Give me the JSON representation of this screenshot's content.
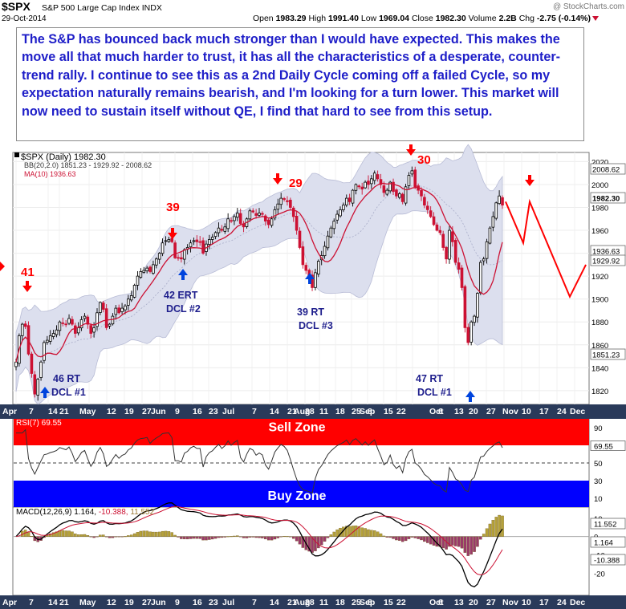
{
  "header": {
    "symbol": "$SPX",
    "name": "S&P 500 Large Cap Index",
    "exchange": "INDX",
    "date": "29-Oct-2014",
    "open_label": "Open",
    "open": "1983.29",
    "high_label": "High",
    "high": "1991.40",
    "low_label": "Low",
    "low": "1969.04",
    "close_label": "Close",
    "close": "1982.30",
    "volume_label": "Volume",
    "volume": "2.2B",
    "chg_label": "Chg",
    "chg": "-2.75 (-0.14%)",
    "watermark": "@ StockCharts.com"
  },
  "annotation_text": "The S&P has bounced back much stronger than I would have expected.  This makes the move all that much harder to trust, it has all the characteristics of a desperate, counter-trend rally.  I continue to see this as a 2nd Daily Cycle coming off a failed Cycle, so my expectation naturally remains bearish, and I'm looking for a turn lower.  This market will now need to sustain itself without QE, I find that hard to see from this setup.",
  "colors": {
    "up": "#000000",
    "down": "#cc1133",
    "bb_fill": "#dcdfee",
    "ma": "#cc1133",
    "sell_zone": "#ff0000",
    "buy_zone": "#0000ff",
    "arrow_red": "#ff0000",
    "arrow_blue": "#0044dd",
    "label_blue": "#1e1e8c",
    "macd_hist": "#9c7a36"
  },
  "chart_data": [
    {
      "type": "candlestick",
      "panel": "price",
      "legend": [
        "$SPX (Daily) 1982.30",
        "BB(20,2.0) 1851.23 - 1929.92 - 2008.62",
        "MA(10) 1936.63"
      ],
      "ylim": [
        1808,
        2028
      ],
      "y_ticks": [
        1820,
        1840,
        1860,
        1880,
        1900,
        1920,
        1940,
        1960,
        1980,
        2000,
        2020
      ],
      "price_tags": [
        "2008.62",
        "1982.30",
        "1936.63",
        "1929.92",
        "1851.23"
      ],
      "month_ticks": [
        "Apr",
        "May",
        "Jun",
        "Jul",
        "Aug",
        "Sep",
        "Oct",
        "Nov",
        "Dec"
      ],
      "day_ticks": [
        "7",
        "14",
        "21",
        "12",
        "19",
        "27",
        "9",
        "16",
        "23",
        "7",
        "14",
        "21",
        "28",
        "11",
        "18",
        "25",
        "8",
        "15",
        "22",
        "6",
        "13",
        "20",
        "27",
        "10",
        "17",
        "24"
      ],
      "closes": [
        1845,
        1868,
        1878,
        1876,
        1852,
        1835,
        1817,
        1830,
        1845,
        1862,
        1864,
        1868,
        1870,
        1873,
        1880,
        1879,
        1878,
        1883,
        1878,
        1870,
        1875,
        1882,
        1885,
        1878,
        1870,
        1875,
        1888,
        1897,
        1891,
        1875,
        1878,
        1885,
        1892,
        1888,
        1892,
        1894,
        1900,
        1903,
        1912,
        1920,
        1924,
        1925,
        1927,
        1924,
        1930,
        1935,
        1940,
        1949,
        1951,
        1952,
        1950,
        1936,
        1936,
        1935,
        1943,
        1945,
        1949,
        1951,
        1950,
        1950,
        1940,
        1948,
        1952,
        1954,
        1958,
        1962,
        1960,
        1963,
        1970,
        1968,
        1972,
        1975,
        1966,
        1963,
        1970,
        1977,
        1976,
        1973,
        1975,
        1974,
        1968,
        1965,
        1970,
        1978,
        1983,
        1988,
        1987,
        1985,
        1980,
        1972,
        1960,
        1945,
        1930,
        1925,
        1920,
        1910,
        1923,
        1933,
        1938,
        1946,
        1955,
        1962,
        1968,
        1974,
        1978,
        1982,
        1988,
        1985,
        1995,
        2000,
        1998,
        1996,
        2002,
        2000,
        2005,
        2010,
        2005,
        2000,
        1993,
        1995,
        2002,
        1994,
        1990,
        1992,
        1985,
        1998,
        2008,
        2012,
        1998,
        1995,
        1990,
        1982,
        1978,
        1972,
        1965,
        1960,
        1958,
        1945,
        1935,
        1960,
        1950,
        1932,
        1926,
        1910,
        1875,
        1862,
        1880,
        1885,
        1905,
        1932,
        1935,
        1950,
        1962,
        1972,
        1984,
        1990,
        1982
      ]
    },
    {
      "type": "line",
      "panel": "rsi",
      "legend": "RSI(7) 69.55",
      "ylim": [
        0,
        100
      ],
      "y_ticks": [
        10,
        30,
        50,
        70,
        90
      ],
      "value_tag": "69.55",
      "sell_zone_label": "Sell Zone",
      "buy_zone_label": "Buy Zone"
    },
    {
      "type": "line+bar",
      "panel": "macd",
      "legend_prefix": "MACD(12,26,9)",
      "legend_macd": "1.164,",
      "legend_signal": "-10.388,",
      "legend_hist": "11.552",
      "ylim": [
        -32,
        16
      ],
      "y_ticks": [
        -20,
        -10,
        0,
        10
      ],
      "value_tags": [
        "11.552",
        "1.164",
        "-10.388"
      ]
    }
  ],
  "cycle_labels": [
    {
      "num": "41",
      "text": [
        "46 RT",
        "DCL #1"
      ]
    },
    {
      "num": "39",
      "text": [
        "42 ERT",
        "DCL #2"
      ]
    },
    {
      "num": "29",
      "text": [
        "39 RT",
        "DCL #3"
      ]
    },
    {
      "num": "30",
      "text": [
        "47 RT",
        "DCL #1"
      ]
    }
  ]
}
